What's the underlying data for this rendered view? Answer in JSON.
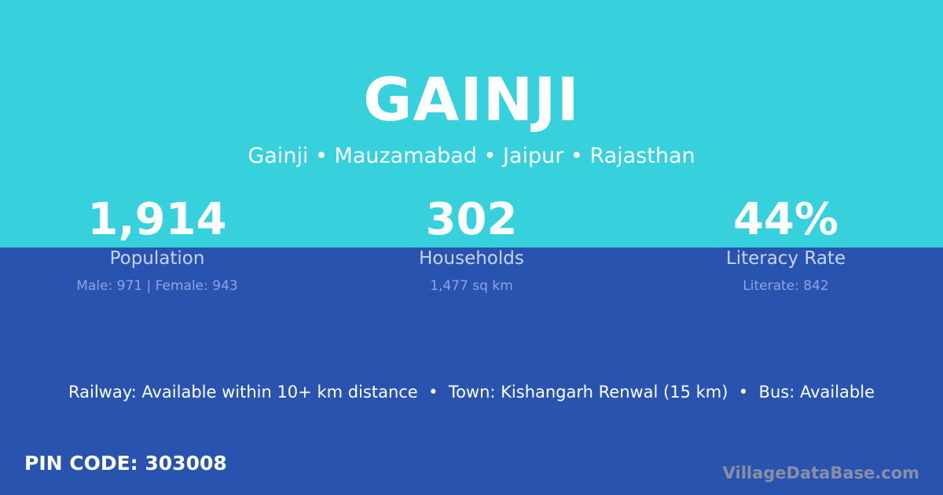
{
  "title": "GAINJI",
  "subtitle": "Gainji • Mauzamabad • Jaipur • Rajasthan",
  "stats": [
    {
      "value": "1,914",
      "label": "Population",
      "detail": "Male: 971 | Female: 943"
    },
    {
      "value": "302",
      "label": "Households",
      "detail": "1,477 sq km"
    },
    {
      "value": "44%",
      "label": "Literacy Rate",
      "detail": "Literate: 842"
    }
  ],
  "info": "Railway: Available within 10+ km distance  •  Town: Kishangarh Renwal (15 km)  •  Bus: Available",
  "pin": "PIN CODE: 303008",
  "logo": "VillageDataBase.com",
  "colors": {
    "top": "#36d1dc",
    "bottom": "#2854b0"
  }
}
